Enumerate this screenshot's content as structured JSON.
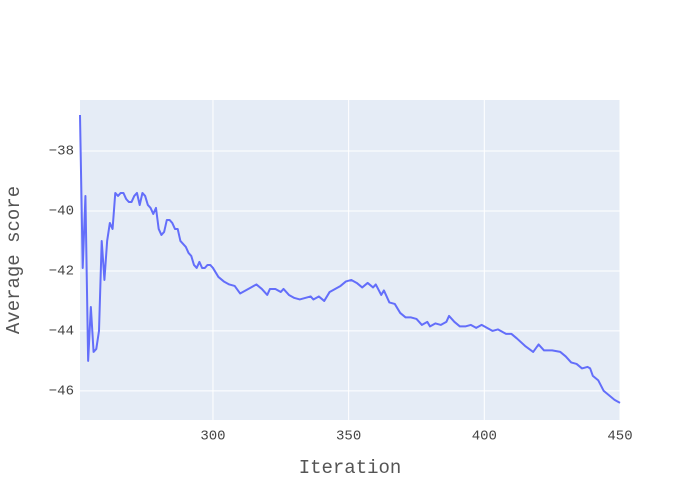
{
  "chart_data": {
    "type": "line",
    "x_label": "Iteration",
    "y_label": "Average score",
    "xlim": [
      251,
      450
    ],
    "ylim": [
      -46.97,
      -36.3
    ],
    "xticks": [
      300,
      350,
      400,
      450
    ],
    "yticks": [
      {
        "value": -38,
        "label": "−38"
      },
      {
        "value": -40,
        "label": "−40"
      },
      {
        "value": -42,
        "label": "−42"
      },
      {
        "value": -44,
        "label": "−44"
      },
      {
        "value": -46,
        "label": "−46"
      }
    ],
    "grid": true,
    "background": "#e5ecf6",
    "series": [
      {
        "color": "#636efa",
        "x": [
          251,
          252,
          253,
          254,
          255,
          256,
          257,
          258,
          259,
          260,
          261,
          262,
          263,
          264,
          265,
          266,
          267,
          268,
          269,
          270,
          271,
          272,
          273,
          274,
          275,
          276,
          277,
          278,
          279,
          280,
          281,
          282,
          283,
          284,
          285,
          286,
          287,
          288,
          289,
          290,
          291,
          292,
          293,
          294,
          295,
          296,
          297,
          298,
          299,
          300,
          302,
          304,
          306,
          308,
          310,
          312,
          314,
          316,
          318,
          320,
          321,
          323,
          325,
          326,
          328,
          330,
          332,
          334,
          336,
          337,
          339,
          341,
          343,
          345,
          347,
          349,
          351,
          353,
          355,
          357,
          359,
          360,
          362,
          363,
          365,
          367,
          369,
          371,
          373,
          375,
          377,
          379,
          380,
          382,
          384,
          386,
          387,
          389,
          391,
          393,
          395,
          397,
          399,
          401,
          403,
          405,
          408,
          410,
          412,
          415,
          418,
          420,
          422,
          425,
          428,
          430,
          432,
          434,
          436,
          438,
          439,
          440,
          442,
          444,
          446,
          448,
          450
        ],
        "values": [
          -36.8,
          -41.9,
          -39.5,
          -45.0,
          -43.2,
          -44.7,
          -44.6,
          -44.0,
          -41.0,
          -42.3,
          -41.0,
          -40.4,
          -40.6,
          -39.4,
          -39.5,
          -39.4,
          -39.4,
          -39.6,
          -39.7,
          -39.7,
          -39.5,
          -39.4,
          -39.8,
          -39.4,
          -39.5,
          -39.8,
          -39.9,
          -40.1,
          -39.9,
          -40.6,
          -40.8,
          -40.7,
          -40.3,
          -40.3,
          -40.4,
          -40.6,
          -40.6,
          -41.0,
          -41.1,
          -41.2,
          -41.4,
          -41.5,
          -41.8,
          -41.9,
          -41.7,
          -41.9,
          -41.9,
          -41.8,
          -41.8,
          -41.9,
          -42.2,
          -42.35,
          -42.45,
          -42.5,
          -42.75,
          -42.65,
          -42.55,
          -42.45,
          -42.6,
          -42.8,
          -42.6,
          -42.6,
          -42.7,
          -42.6,
          -42.8,
          -42.9,
          -42.95,
          -42.9,
          -42.85,
          -42.95,
          -42.85,
          -43.0,
          -42.7,
          -42.6,
          -42.5,
          -42.35,
          -42.3,
          -42.4,
          -42.55,
          -42.4,
          -42.55,
          -42.45,
          -42.8,
          -42.65,
          -43.05,
          -43.1,
          -43.4,
          -43.55,
          -43.55,
          -43.6,
          -43.8,
          -43.7,
          -43.85,
          -43.75,
          -43.8,
          -43.7,
          -43.5,
          -43.7,
          -43.85,
          -43.85,
          -43.8,
          -43.9,
          -43.8,
          -43.9,
          -44.0,
          -43.95,
          -44.1,
          -44.1,
          -44.25,
          -44.5,
          -44.7,
          -44.45,
          -44.65,
          -44.65,
          -44.7,
          -44.85,
          -45.05,
          -45.1,
          -45.25,
          -45.2,
          -45.25,
          -45.5,
          -45.65,
          -46.0,
          -46.15,
          -46.3,
          -46.4
        ]
      }
    ]
  }
}
